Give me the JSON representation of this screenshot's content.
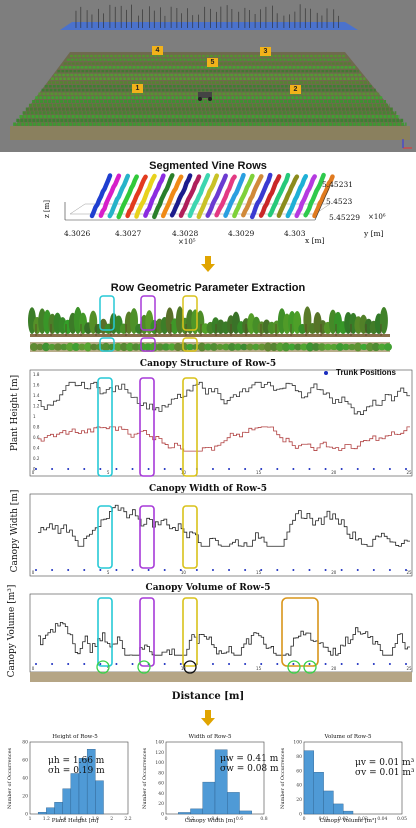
{
  "field_markers": [
    "4",
    "5",
    "3",
    "1",
    "2"
  ],
  "segmented": {
    "title": "Segmented Vine Rows",
    "xlabel": "x [m]",
    "ylabel": "y [m]",
    "zlabel": "z [m]",
    "x_ticks": [
      "4.3026",
      "4.3027",
      "4.3028",
      "4.3029",
      "4.303"
    ],
    "x_exp": "×10⁵",
    "y_ticks": [
      "5.45231",
      "5.4523",
      "5.45229"
    ],
    "y_exp": "×10⁶",
    "row_colors": [
      "#1f3fd0",
      "#d61ec9",
      "#27b3c9",
      "#31c93a",
      "#e23b1f",
      "#e8d21d",
      "#8b2be0",
      "#2a7f2a",
      "#f08a17",
      "#1c1c8c",
      "#b01f5a",
      "#3dd6b0",
      "#c9c227",
      "#6b3bd1",
      "#e33a83",
      "#2a9fe0",
      "#7fd13a",
      "#d18a3a",
      "#3a3ad1",
      "#c92727",
      "#27c97a",
      "#8c8c1c",
      "#1fb0d6",
      "#b53ae0",
      "#2fc94d",
      "#e07a1f"
    ]
  },
  "extraction": {
    "title": "Row Geometric Parameter Extraction"
  },
  "structure": {
    "title": "Canopy Structure of Row-5",
    "ylabel": "Plant Height [m]",
    "legend": "Trunk Positions",
    "y_ticks": [
      "1.8",
      "1.6",
      "1.4",
      "1.2",
      "1",
      "0.8",
      "0.6",
      "0.4",
      "0.2",
      "0"
    ],
    "x_ticks": [
      "0",
      "5",
      "10",
      "15",
      "20",
      "25"
    ]
  },
  "width": {
    "title": "Canopy Width of Row-5",
    "ylabel": "Canopy Width [m]",
    "x_ticks": [
      "0",
      "5",
      "10",
      "15",
      "20",
      "25"
    ]
  },
  "volume": {
    "title": "Canopy Volume of Row-5",
    "ylabel": "Canopy Volume [m³]",
    "xlabel": "Distance [m]",
    "x_ticks": [
      "0",
      "5",
      "10",
      "15",
      "20",
      "25"
    ]
  },
  "histograms": [
    {
      "title": "Height of Row-5",
      "xlabel": "Plant Height [m]",
      "ylabel": "Number of Occurrences",
      "mu": "μh = 1.66 m",
      "sigma": "σh = 0.19 m",
      "x_ticks": [
        "1",
        "1.2",
        "1.4",
        "1.6",
        "1.8",
        "2",
        "2.2"
      ],
      "y_ticks": [
        "0",
        "20",
        "40",
        "60",
        "80"
      ],
      "ymax": 80,
      "bins": [
        1.15,
        1.25,
        1.35,
        1.45,
        1.55,
        1.65,
        1.75,
        1.85
      ],
      "values": [
        2,
        7,
        13,
        28,
        45,
        62,
        72,
        37
      ]
    },
    {
      "title": "Width of Row-5",
      "xlabel": "Canopy Width [m]",
      "ylabel": "Number of Occurrences",
      "mu": "μw = 0.41 m",
      "sigma": "σw = 0.08 m",
      "x_ticks": [
        "0",
        "0.2",
        "0.4",
        "0.6",
        "0.8"
      ],
      "y_ticks": [
        "0",
        "20",
        "40",
        "60",
        "80",
        "100",
        "120",
        "140"
      ],
      "ymax": 140,
      "bins": [
        0.15,
        0.25,
        0.35,
        0.45,
        0.55,
        0.65
      ],
      "values": [
        3,
        10,
        62,
        125,
        42,
        6
      ]
    },
    {
      "title": "Volume of Row-5",
      "xlabel": "Canopy Volume [m³]",
      "ylabel": "Number of Occurrences",
      "mu": "μv = 0.01 m³",
      "sigma": "σv = 0.01 m³",
      "x_ticks": [
        "0",
        "0.01",
        "0.02",
        "0.03",
        "0.04",
        "0.05"
      ],
      "y_ticks": [
        "0",
        "20",
        "40",
        "60",
        "80",
        "100"
      ],
      "ymax": 100,
      "bins": [
        0.0025,
        0.0075,
        0.0125,
        0.0175,
        0.0225
      ],
      "values": [
        88,
        58,
        32,
        14,
        4
      ]
    }
  ]
}
